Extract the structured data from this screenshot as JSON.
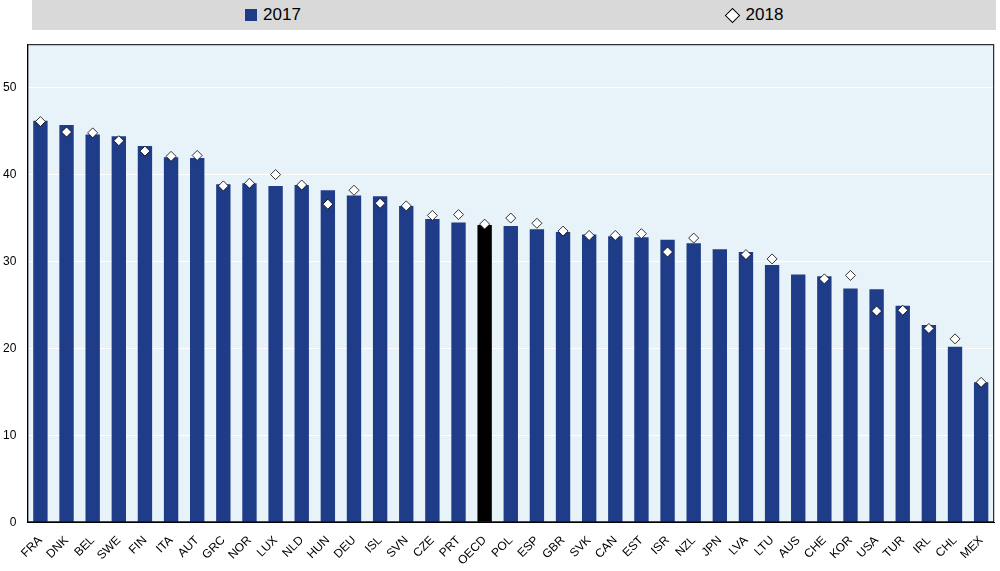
{
  "chart_data": {
    "type": "bar",
    "categories": [
      "FRA",
      "DNK",
      "BEL",
      "SWE",
      "FIN",
      "ITA",
      "AUT",
      "GRC",
      "NOR",
      "LUX",
      "NLD",
      "HUN",
      "DEU",
      "ISL",
      "SVN",
      "CZE",
      "PRT",
      "OECD",
      "POL",
      "ESP",
      "GBR",
      "SVK",
      "CAN",
      "EST",
      "ISR",
      "NZL",
      "JPN",
      "LVA",
      "LTU",
      "AUS",
      "CHE",
      "KOR",
      "USA",
      "TUR",
      "IRL",
      "CHL",
      "MEX"
    ],
    "series": [
      {
        "name": "2017",
        "type": "bar",
        "color": "#1f3c88",
        "colors": [
          "#1f3c88",
          "#1f3c88",
          "#1f3c88",
          "#1f3c88",
          "#1f3c88",
          "#1f3c88",
          "#1f3c88",
          "#1f3c88",
          "#1f3c88",
          "#1f3c88",
          "#1f3c88",
          "#1f3c88",
          "#1f3c88",
          "#1f3c88",
          "#1f3c88",
          "#1f3c88",
          "#1f3c88",
          "#000000",
          "#1f3c88",
          "#1f3c88",
          "#1f3c88",
          "#1f3c88",
          "#1f3c88",
          "#1f3c88",
          "#1f3c88",
          "#1f3c88",
          "#1f3c88",
          "#1f3c88",
          "#1f3c88",
          "#1f3c88",
          "#1f3c88",
          "#1f3c88",
          "#1f3c88",
          "#1f3c88",
          "#1f3c88",
          "#1f3c88",
          "#1f3c88"
        ],
        "values": [
          46.2,
          45.7,
          44.6,
          44.4,
          43.3,
          42.0,
          41.9,
          38.9,
          39.0,
          38.7,
          38.8,
          38.2,
          37.6,
          37.5,
          36.4,
          34.9,
          34.5,
          34.2,
          34.1,
          33.7,
          33.4,
          33.1,
          32.9,
          32.8,
          32.5,
          32.1,
          31.4,
          31.1,
          29.6,
          28.5,
          28.3,
          26.9,
          26.8,
          24.9,
          22.7,
          20.2,
          16.1
        ]
      },
      {
        "name": "2018",
        "type": "scatter",
        "marker": "diamond",
        "color": "#ffffff",
        "values": [
          46.1,
          44.9,
          44.8,
          43.9,
          42.7,
          42.1,
          42.2,
          38.7,
          39.0,
          40.0,
          38.8,
          36.6,
          38.2,
          36.7,
          36.4,
          35.3,
          35.4,
          34.3,
          35.0,
          34.4,
          33.5,
          33.0,
          33.0,
          33.2,
          31.1,
          32.7,
          null,
          30.8,
          30.3,
          null,
          28.0,
          28.4,
          24.3,
          24.4,
          22.3,
          21.1,
          16.1
        ]
      }
    ],
    "ylim": [
      0,
      55
    ],
    "yticks": [
      0,
      10,
      20,
      30,
      40,
      50
    ],
    "grid": true,
    "legend": "top"
  }
}
